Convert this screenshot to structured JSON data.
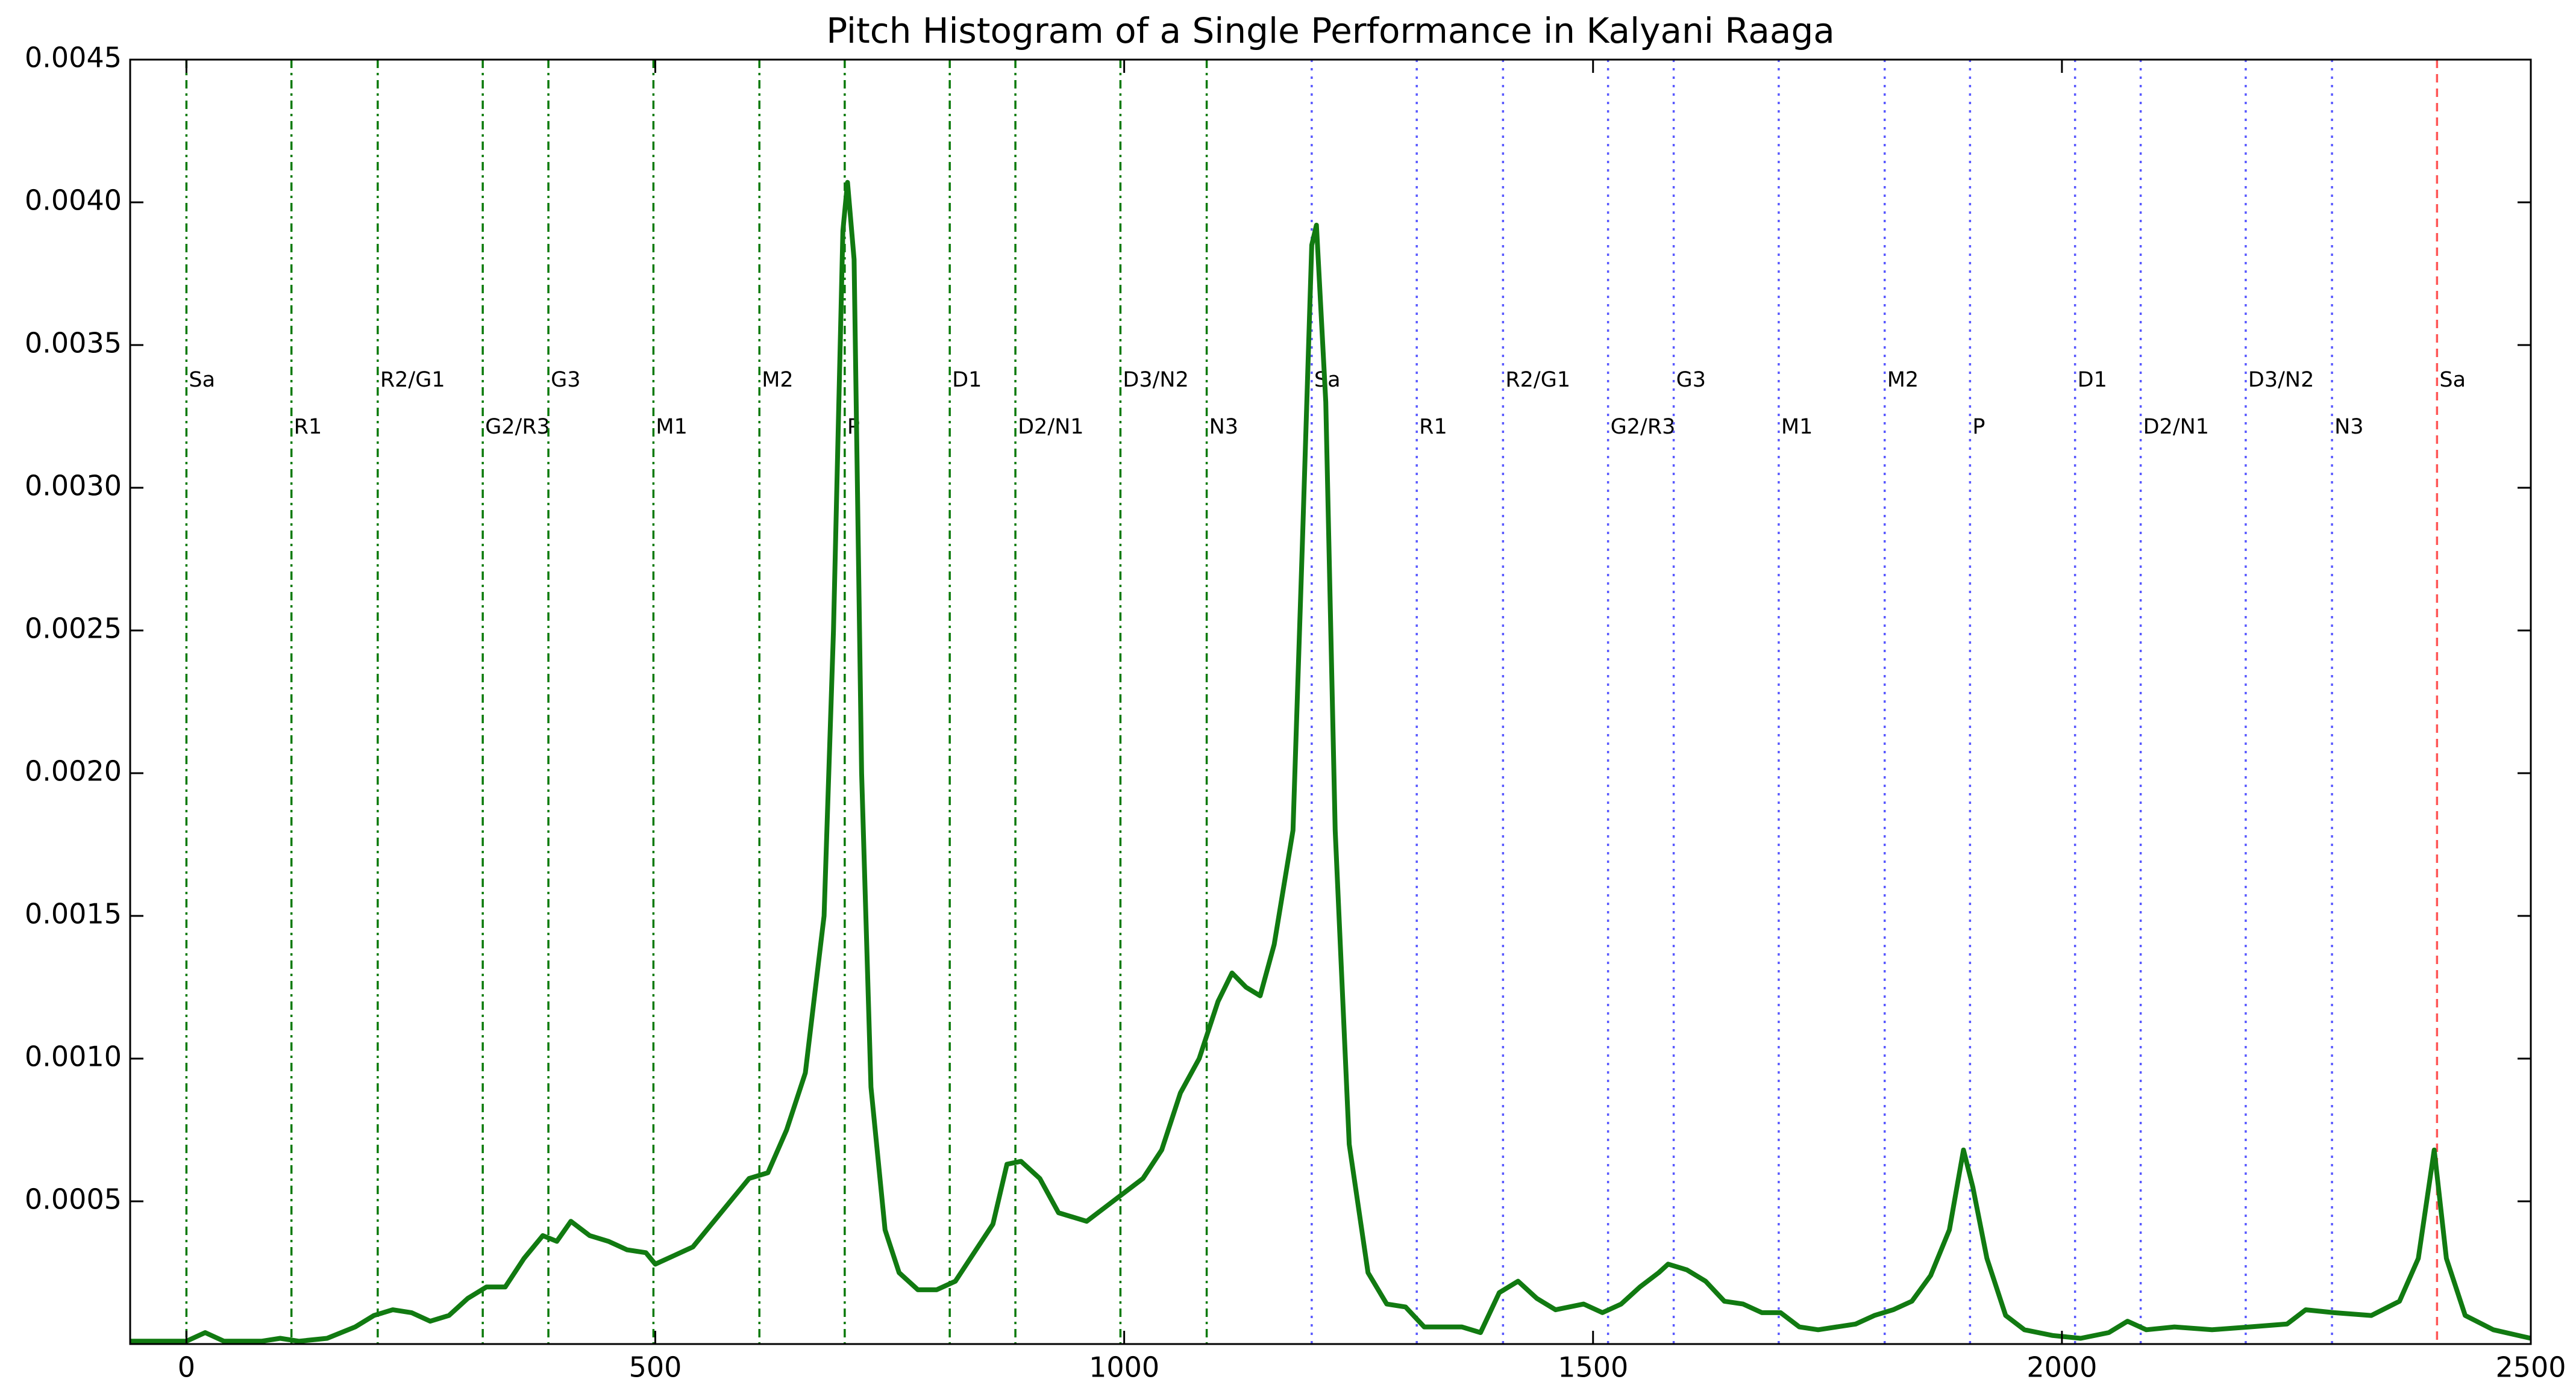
{
  "chart_data": {
    "type": "line",
    "title": "Pitch Histogram of a Single Performance in Kalyani Raaga",
    "color": "#117a11",
    "x": [
      -60,
      0,
      20,
      40,
      80,
      100,
      120,
      150,
      180,
      200,
      220,
      240,
      260,
      280,
      300,
      320,
      340,
      360,
      380,
      395,
      410,
      430,
      450,
      470,
      490,
      500,
      520,
      540,
      560,
      580,
      600,
      620,
      640,
      660,
      680,
      690,
      700,
      705,
      712,
      720,
      730,
      745,
      760,
      780,
      800,
      820,
      840,
      860,
      875,
      890,
      910,
      930,
      960,
      980,
      1000,
      1020,
      1040,
      1060,
      1080,
      1100,
      1115,
      1130,
      1145,
      1160,
      1180,
      1190,
      1200,
      1205,
      1215,
      1225,
      1240,
      1260,
      1280,
      1300,
      1320,
      1360,
      1380,
      1400,
      1420,
      1440,
      1460,
      1490,
      1510,
      1530,
      1550,
      1570,
      1580,
      1600,
      1620,
      1640,
      1660,
      1680,
      1700,
      1720,
      1740,
      1780,
      1800,
      1820,
      1840,
      1860,
      1880,
      1895,
      1905,
      1920,
      1940,
      1960,
      1990,
      2020,
      2050,
      2070,
      2090,
      2120,
      2160,
      2200,
      2240,
      2260,
      2290,
      2330,
      2360,
      2380,
      2397,
      2410,
      2430,
      2460,
      2500
    ],
    "values": [
      1e-05,
      1e-05,
      4e-05,
      1e-05,
      1e-05,
      2e-05,
      1e-05,
      2e-05,
      6e-05,
      0.0001,
      0.00012,
      0.00011,
      8e-05,
      0.0001,
      0.00016,
      0.0002,
      0.0002,
      0.0003,
      0.00038,
      0.00036,
      0.00043,
      0.00038,
      0.00036,
      0.00033,
      0.00032,
      0.00028,
      0.00031,
      0.00034,
      0.00042,
      0.0005,
      0.00058,
      0.0006,
      0.00075,
      0.00095,
      0.0015,
      0.0025,
      0.0039,
      0.00407,
      0.0038,
      0.002,
      0.0009,
      0.0004,
      0.00025,
      0.00019,
      0.00019,
      0.00022,
      0.00032,
      0.00042,
      0.00063,
      0.00064,
      0.00058,
      0.00046,
      0.00043,
      0.00048,
      0.00053,
      0.00058,
      0.00068,
      0.00088,
      0.001,
      0.0012,
      0.0013,
      0.00125,
      0.00122,
      0.0014,
      0.0018,
      0.0028,
      0.00385,
      0.00392,
      0.0033,
      0.0018,
      0.0007,
      0.00025,
      0.00014,
      0.00013,
      6e-05,
      6e-05,
      4e-05,
      0.00018,
      0.00022,
      0.00016,
      0.00012,
      0.00014,
      0.00011,
      0.00014,
      0.0002,
      0.00025,
      0.00028,
      0.00026,
      0.00022,
      0.00015,
      0.00014,
      0.00011,
      0.00011,
      6e-05,
      5e-05,
      7e-05,
      0.0001,
      0.00012,
      0.00015,
      0.00024,
      0.0004,
      0.00068,
      0.00055,
      0.0003,
      0.0001,
      5e-05,
      3e-05,
      2e-05,
      4e-05,
      8e-05,
      5e-05,
      6e-05,
      5e-05,
      6e-05,
      7e-05,
      0.00012,
      0.00011,
      0.0001,
      0.00015,
      0.0003,
      0.00068,
      0.0003,
      0.0001,
      5e-05,
      2e-05
    ],
    "xlim": [
      -60,
      2500
    ],
    "ylim": [
      0,
      0.0045
    ],
    "xticks": [
      0,
      500,
      1000,
      1500,
      2000,
      2500
    ],
    "yticks": [
      {
        "value": 0.0005,
        "label": "0.0005"
      },
      {
        "value": 0.001,
        "label": "0.0010"
      },
      {
        "value": 0.0015,
        "label": "0.0015"
      },
      {
        "value": 0.002,
        "label": "0.0020"
      },
      {
        "value": 0.0025,
        "label": "0.0025"
      },
      {
        "value": 0.003,
        "label": "0.0030"
      },
      {
        "value": 0.0035,
        "label": "0.0035"
      },
      {
        "value": 0.004,
        "label": "0.0040"
      },
      {
        "value": 0.0045,
        "label": "0.0045"
      }
    ],
    "markers": [
      {
        "x": 0,
        "label": "Sa",
        "color": "green",
        "style": "dashdot"
      },
      {
        "x": 112,
        "label": "R1",
        "color": "green",
        "style": "dashdot"
      },
      {
        "x": 204,
        "label": "R2/G1",
        "color": "green",
        "style": "dashdot"
      },
      {
        "x": 316,
        "label": "G2/R3",
        "color": "green",
        "style": "dashdot"
      },
      {
        "x": 386,
        "label": "G3",
        "color": "green",
        "style": "dashdot"
      },
      {
        "x": 498,
        "label": "M1",
        "color": "green",
        "style": "dashdot"
      },
      {
        "x": 611,
        "label": "M2",
        "color": "green",
        "style": "dashdot"
      },
      {
        "x": 702,
        "label": "P",
        "color": "green",
        "style": "dashdot"
      },
      {
        "x": 814,
        "label": "D1",
        "color": "green",
        "style": "dashdot"
      },
      {
        "x": 884,
        "label": "D2/N1",
        "color": "green",
        "style": "dashdot"
      },
      {
        "x": 996,
        "label": "D3/N2",
        "color": "green",
        "style": "dashdot"
      },
      {
        "x": 1088,
        "label": "N3",
        "color": "green",
        "style": "dashdot"
      },
      {
        "x": 1200,
        "label": "Sa",
        "color": "blue",
        "style": "dotted"
      },
      {
        "x": 1312,
        "label": "R1",
        "color": "blue",
        "style": "dotted"
      },
      {
        "x": 1404,
        "label": "R2/G1",
        "color": "blue",
        "style": "dotted"
      },
      {
        "x": 1516,
        "label": "G2/R3",
        "color": "blue",
        "style": "dotted"
      },
      {
        "x": 1586,
        "label": "G3",
        "color": "blue",
        "style": "dotted"
      },
      {
        "x": 1698,
        "label": "M1",
        "color": "blue",
        "style": "dotted"
      },
      {
        "x": 1811,
        "label": "M2",
        "color": "blue",
        "style": "dotted"
      },
      {
        "x": 1902,
        "label": "P",
        "color": "blue",
        "style": "dotted"
      },
      {
        "x": 2014,
        "label": "D1",
        "color": "blue",
        "style": "dotted"
      },
      {
        "x": 2084,
        "label": "D2/N1",
        "color": "blue",
        "style": "dotted"
      },
      {
        "x": 2196,
        "label": "D3/N2",
        "color": "blue",
        "style": "dotted"
      },
      {
        "x": 2288,
        "label": "N3",
        "color": "blue",
        "style": "dotted"
      },
      {
        "x": 2400,
        "label": "Sa",
        "color": "red",
        "style": "dashed"
      }
    ]
  }
}
